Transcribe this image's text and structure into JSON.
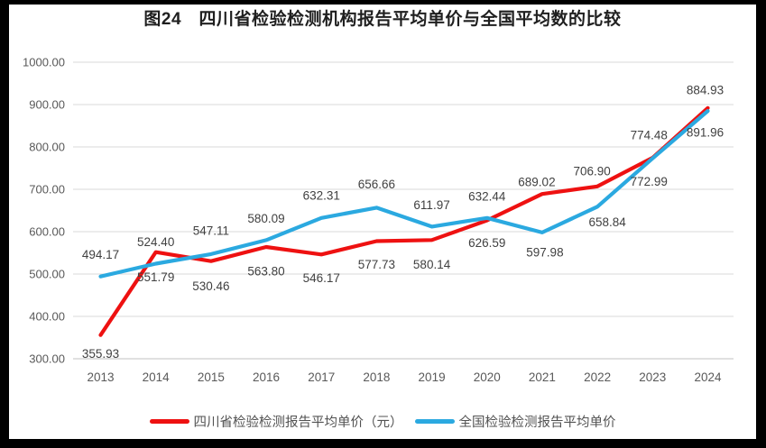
{
  "title": "图24　四川省检验检测机构报告平均单价与全国平均数的比较",
  "chart_data": {
    "type": "line",
    "title": "图24　四川省检验检测机构报告平均单价与全国平均数的比较",
    "categories": [
      "2013",
      "2014",
      "2015",
      "2016",
      "2017",
      "2018",
      "2019",
      "2020",
      "2021",
      "2022",
      "2023",
      "2024"
    ],
    "series": [
      {
        "name": "四川省检验检测报告平均单价（元）",
        "color": "#ee1111",
        "values": [
          355.93,
          551.79,
          530.46,
          563.8,
          546.17,
          577.73,
          580.14,
          626.59,
          689.02,
          706.9,
          774.48,
          891.96
        ]
      },
      {
        "name": "全国检验检测报告平均单价",
        "color": "#2ba9e0",
        "values": [
          494.17,
          524.4,
          547.11,
          580.09,
          632.31,
          656.66,
          611.97,
          632.44,
          597.98,
          658.84,
          772.99,
          884.93
        ]
      }
    ],
    "ylim": [
      300,
      1000
    ],
    "ytick_step": 100,
    "yticks": [
      "300.00",
      "400.00",
      "500.00",
      "600.00",
      "700.00",
      "800.00",
      "900.00",
      "1000.00"
    ],
    "grid": true,
    "data_labels": true,
    "label_decimals": 2,
    "legend_position": "bottom",
    "xlabel": "",
    "ylabel": ""
  },
  "colors": {
    "frame": "#000000",
    "background": "#ffffff",
    "gridline": "#d9d9d9",
    "axis_line": "#c2c2c2",
    "axis_text": "#595959",
    "data_label_text": "#404040",
    "title_text": "#1f1f1f",
    "legend_text": "#525252"
  }
}
